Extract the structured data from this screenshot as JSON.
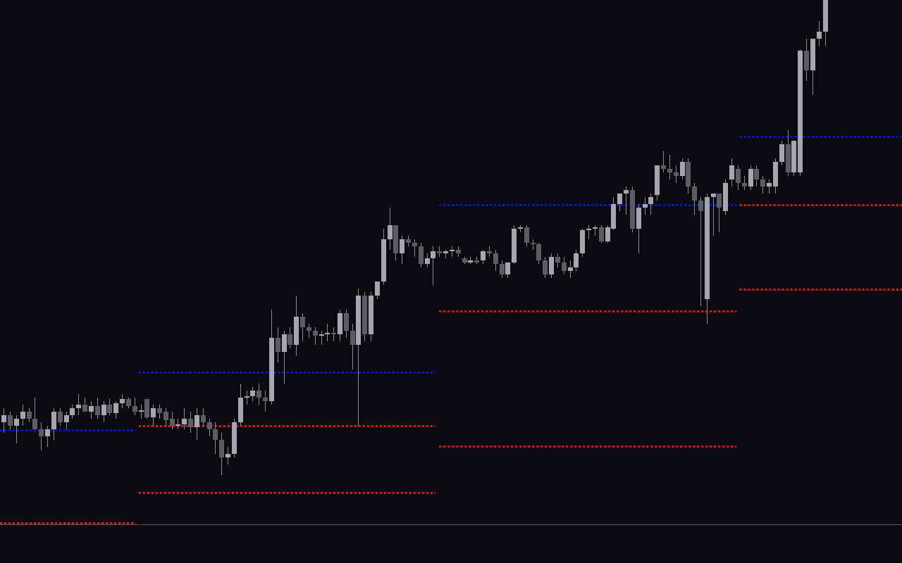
{
  "chart_data": {
    "type": "candlestick",
    "up_color": "#a6a6b0",
    "down_color": "#5c5c66",
    "wick_color": "#8a8a94",
    "background": "#0a0a10",
    "baseline_color": "#555560",
    "xlim": [
      -0.6,
      144.4
    ],
    "ylim": [
      -55,
      745
    ],
    "candles": [
      [
        145,
        165,
        130,
        155
      ],
      [
        155,
        160,
        135,
        140
      ],
      [
        140,
        155,
        115,
        150
      ],
      [
        150,
        170,
        140,
        160
      ],
      [
        160,
        165,
        145,
        150
      ],
      [
        150,
        180,
        135,
        135
      ],
      [
        135,
        145,
        105,
        125
      ],
      [
        125,
        140,
        110,
        135
      ],
      [
        135,
        165,
        120,
        160
      ],
      [
        160,
        165,
        140,
        145
      ],
      [
        145,
        160,
        135,
        155
      ],
      [
        155,
        170,
        150,
        165
      ],
      [
        165,
        185,
        155,
        170
      ],
      [
        170,
        180,
        160,
        160
      ],
      [
        160,
        175,
        150,
        168
      ],
      [
        168,
        180,
        150,
        155
      ],
      [
        155,
        175,
        145,
        170
      ],
      [
        170,
        178,
        155,
        158
      ],
      [
        158,
        175,
        150,
        172
      ],
      [
        172,
        185,
        165,
        178
      ],
      [
        178,
        180,
        165,
        168
      ],
      [
        168,
        180,
        155,
        160
      ],
      [
        160,
        170,
        150,
        162
      ],
      [
        178,
        178,
        150,
        152
      ],
      [
        152,
        170,
        140,
        165
      ],
      [
        165,
        170,
        150,
        158
      ],
      [
        160,
        165,
        140,
        148
      ],
      [
        150,
        160,
        135,
        140
      ],
      [
        140,
        150,
        135,
        142
      ],
      [
        142,
        165,
        135,
        150
      ],
      [
        150,
        160,
        130,
        138
      ],
      [
        138,
        165,
        120,
        155
      ],
      [
        155,
        165,
        140,
        145
      ],
      [
        145,
        150,
        125,
        135
      ],
      [
        135,
        145,
        100,
        120
      ],
      [
        120,
        130,
        70,
        95
      ],
      [
        95,
        110,
        85,
        100
      ],
      [
        100,
        150,
        95,
        145
      ],
      [
        145,
        200,
        140,
        180
      ],
      [
        180,
        190,
        170,
        182
      ],
      [
        182,
        195,
        175,
        190
      ],
      [
        190,
        200,
        170,
        180
      ],
      [
        180,
        190,
        160,
        175
      ],
      [
        175,
        305,
        170,
        265
      ],
      [
        265,
        280,
        230,
        245
      ],
      [
        245,
        275,
        200,
        270
      ],
      [
        270,
        280,
        250,
        255
      ],
      [
        255,
        325,
        240,
        295
      ],
      [
        295,
        300,
        260,
        280
      ],
      [
        280,
        285,
        265,
        275
      ],
      [
        275,
        280,
        255,
        268
      ],
      [
        268,
        275,
        255,
        270
      ],
      [
        270,
        285,
        260,
        272
      ],
      [
        272,
        280,
        260,
        270
      ],
      [
        270,
        305,
        260,
        300
      ],
      [
        300,
        305,
        265,
        275
      ],
      [
        275,
        285,
        220,
        255
      ],
      [
        255,
        335,
        140,
        325
      ],
      [
        325,
        330,
        260,
        270
      ],
      [
        270,
        330,
        260,
        325
      ],
      [
        325,
        345,
        320,
        345
      ],
      [
        345,
        420,
        340,
        405
      ],
      [
        405,
        450,
        390,
        425
      ],
      [
        425,
        425,
        375,
        385
      ],
      [
        385,
        410,
        370,
        405
      ],
      [
        405,
        410,
        395,
        400
      ],
      [
        400,
        405,
        380,
        395
      ],
      [
        395,
        400,
        365,
        370
      ],
      [
        370,
        385,
        365,
        378
      ],
      [
        378,
        395,
        340,
        388
      ],
      [
        388,
        395,
        380,
        385
      ],
      [
        385,
        390,
        378,
        388
      ],
      [
        388,
        395,
        380,
        390
      ],
      [
        390,
        395,
        380,
        385
      ],
      [
        378,
        380,
        370,
        372
      ],
      [
        372,
        380,
        370,
        375
      ],
      [
        375,
        380,
        370,
        372
      ],
      [
        375,
        390,
        370,
        388
      ],
      [
        388,
        395,
        380,
        385
      ],
      [
        385,
        390,
        360,
        370
      ],
      [
        370,
        375,
        350,
        355
      ],
      [
        355,
        370,
        350,
        372
      ],
      [
        372,
        425,
        370,
        420
      ],
      [
        420,
        425,
        415,
        422
      ],
      [
        422,
        425,
        395,
        400
      ],
      [
        400,
        405,
        390,
        398
      ],
      [
        398,
        400,
        370,
        375
      ],
      [
        375,
        380,
        350,
        355
      ],
      [
        355,
        385,
        350,
        380
      ],
      [
        380,
        385,
        365,
        372
      ],
      [
        372,
        380,
        355,
        360
      ],
      [
        360,
        375,
        350,
        365
      ],
      [
        365,
        390,
        360,
        385
      ],
      [
        385,
        420,
        380,
        418
      ],
      [
        418,
        425,
        405,
        420
      ],
      [
        420,
        425,
        410,
        422
      ],
      [
        422,
        425,
        400,
        402
      ],
      [
        402,
        425,
        400,
        422
      ],
      [
        420,
        465,
        418,
        455
      ],
      [
        455,
        470,
        445,
        470
      ],
      [
        470,
        480,
        440,
        475
      ],
      [
        475,
        480,
        415,
        420
      ],
      [
        420,
        455,
        385,
        450
      ],
      [
        450,
        465,
        440,
        455
      ],
      [
        455,
        470,
        440,
        465
      ],
      [
        468,
        510,
        460,
        510
      ],
      [
        510,
        530,
        500,
        505
      ],
      [
        505,
        525,
        490,
        500
      ],
      [
        500,
        510,
        485,
        495
      ],
      [
        495,
        520,
        490,
        515
      ],
      [
        515,
        520,
        470,
        480
      ],
      [
        480,
        485,
        440,
        460
      ],
      [
        460,
        465,
        310,
        445
      ],
      [
        320,
        470,
        285,
        465
      ],
      [
        465,
        470,
        410,
        470
      ],
      [
        470,
        470,
        415,
        450
      ],
      [
        445,
        490,
        440,
        485
      ],
      [
        490,
        520,
        480,
        510
      ],
      [
        505,
        510,
        475,
        485
      ],
      [
        485,
        495,
        475,
        480
      ],
      [
        480,
        510,
        475,
        505
      ],
      [
        505,
        510,
        480,
        490
      ],
      [
        490,
        495,
        470,
        480
      ],
      [
        480,
        490,
        470,
        485
      ],
      [
        480,
        520,
        470,
        515
      ],
      [
        515,
        545,
        510,
        540
      ],
      [
        540,
        560,
        495,
        500
      ],
      [
        500,
        545,
        495,
        545
      ],
      [
        500,
        675,
        495,
        673
      ],
      [
        673,
        690,
        630,
        645
      ],
      [
        645,
        690,
        610,
        690
      ],
      [
        690,
        715,
        680,
        700
      ],
      [
        700,
        800,
        680,
        760
      ]
    ],
    "levels": [
      {
        "color": "#1010dd",
        "value": 134,
        "start": -0.6,
        "end": 21.2
      },
      {
        "color": "#dd1818",
        "value": 2,
        "start": -0.6,
        "end": 21.2
      },
      {
        "color": "#1010dd",
        "value": 216,
        "start": 21.7,
        "end": 69.4
      },
      {
        "color": "#dd1818",
        "value": 140,
        "start": 21.7,
        "end": 69.4
      },
      {
        "color": "#dd1818",
        "value": 45,
        "start": 21.7,
        "end": 69.4
      },
      {
        "color": "#1010dd",
        "value": 454,
        "start": 70,
        "end": 117.8
      },
      {
        "color": "#dd1818",
        "value": 303,
        "start": 70,
        "end": 117.8
      },
      {
        "color": "#dd1818",
        "value": 111,
        "start": 70,
        "end": 117.8
      },
      {
        "color": "#1010dd",
        "value": 551,
        "start": 118.3,
        "end": 144.4
      },
      {
        "color": "#dd1818",
        "value": 454,
        "start": 118.3,
        "end": 144.4
      },
      {
        "color": "#dd1818",
        "value": 334,
        "start": 118.3,
        "end": 144.4
      }
    ]
  }
}
